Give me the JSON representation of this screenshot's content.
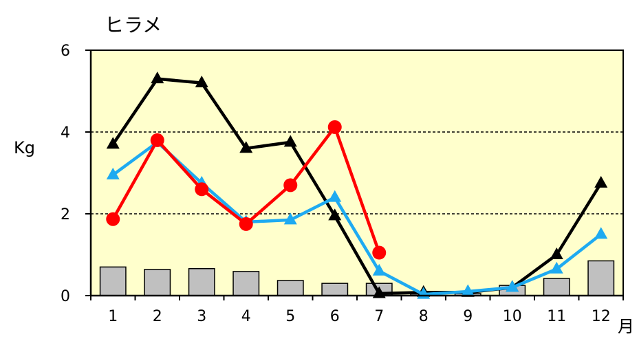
{
  "chart_data": {
    "type": "line",
    "title": "ヒラメ",
    "ylabel": "Kg",
    "x_unit": "月",
    "ylim": [
      0,
      6
    ],
    "yticks": [
      "0",
      "2",
      "4",
      "6"
    ],
    "categories": [
      "1",
      "2",
      "3",
      "4",
      "5",
      "6",
      "7",
      "8",
      "9",
      "10",
      "11",
      "12"
    ],
    "grid_dashed_at": [
      2,
      4
    ],
    "bars": {
      "color": "#c0c0c0",
      "values": [
        0.7,
        0.64,
        0.66,
        0.59,
        0.37,
        0.3,
        0.3,
        0.04,
        0.05,
        0.25,
        0.42,
        0.85
      ]
    },
    "series": [
      {
        "color": "#000000",
        "marker": "triangle",
        "values": [
          3.7,
          5.3,
          5.2,
          3.6,
          3.75,
          1.95,
          0.05,
          0.08,
          0.08,
          0.2,
          1.0,
          2.75
        ]
      },
      {
        "color": "#1eaaf1",
        "marker": "triangle",
        "values": [
          2.95,
          3.75,
          2.75,
          1.8,
          1.85,
          2.4,
          0.6,
          0.03,
          0.1,
          0.2,
          0.65,
          1.5
        ]
      },
      {
        "color": "#ff0000",
        "marker": "circle",
        "values": [
          1.87,
          3.8,
          2.6,
          1.75,
          2.7,
          4.12,
          1.05,
          null,
          null,
          null,
          null,
          null
        ]
      }
    ],
    "plot_background": "#ffffcc"
  }
}
